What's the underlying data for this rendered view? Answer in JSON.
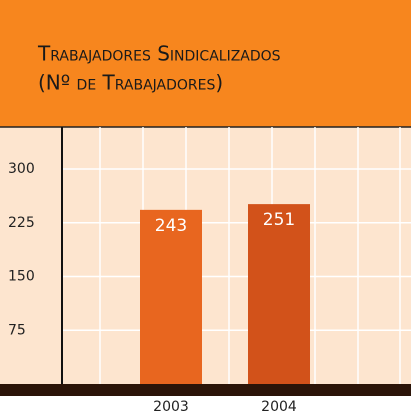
{
  "chart_data": {
    "type": "bar",
    "title": "Trabajadores Sindicalizados",
    "subtitle": "(Nº de Trabajadores)",
    "categories": [
      "2003",
      "2004"
    ],
    "series": [
      {
        "name": "Trabajadores",
        "colors": [
          "#e8661f",
          "#d2521a"
        ],
        "values": [
          243,
          251
        ]
      }
    ],
    "ylim": [
      0,
      360
    ],
    "yticks": [
      75,
      150,
      225,
      300
    ],
    "grid": true
  }
}
